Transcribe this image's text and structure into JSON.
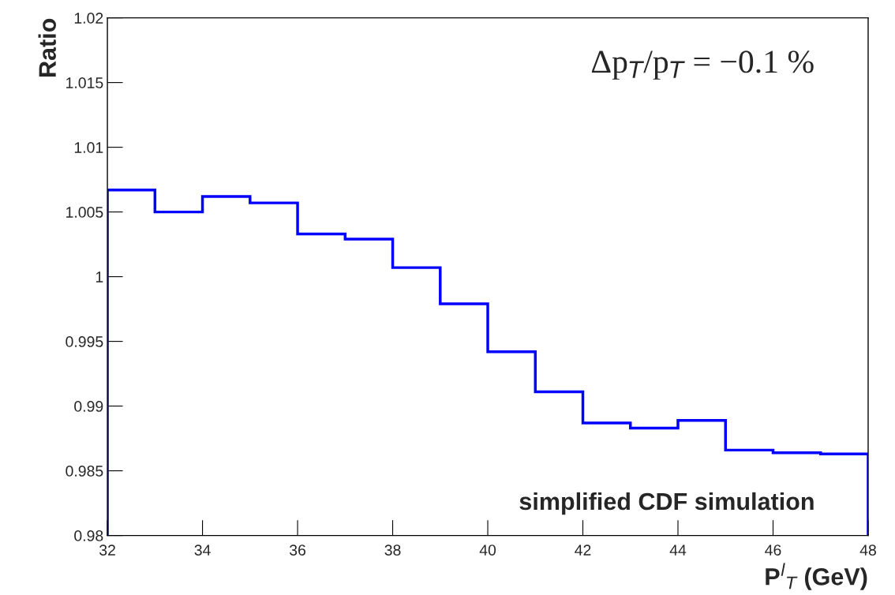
{
  "chart_data": {
    "type": "histogram",
    "xlabel": "P$^{l}$$_{T}$ (GeV)",
    "ylabel": "Ratio",
    "bins": [
      32,
      33,
      34,
      35,
      36,
      37,
      38,
      39,
      40,
      41,
      42,
      43,
      44,
      45,
      46,
      47,
      48
    ],
    "values": [
      1.0067,
      1.005,
      1.0062,
      1.0057,
      1.0033,
      1.0029,
      1.0007,
      0.9979,
      0.9942,
      0.9911,
      0.9887,
      0.9883,
      0.9889,
      0.9866,
      0.9864,
      0.9863
    ],
    "color": "#0000ff",
    "xlim": [
      32,
      48
    ],
    "ylim": [
      0.98,
      1.02
    ],
    "xticks": [
      32,
      34,
      36,
      38,
      40,
      42,
      44,
      46,
      48
    ],
    "yticks": [
      0.98,
      0.985,
      0.99,
      0.995,
      1,
      1.005,
      1.01,
      1.015,
      1.02
    ],
    "grid": false,
    "legend": false,
    "annotations": [
      "Δp$_{T}$/p$_{T}$ = −0.1 %",
      "simplified CDF simulation"
    ]
  }
}
